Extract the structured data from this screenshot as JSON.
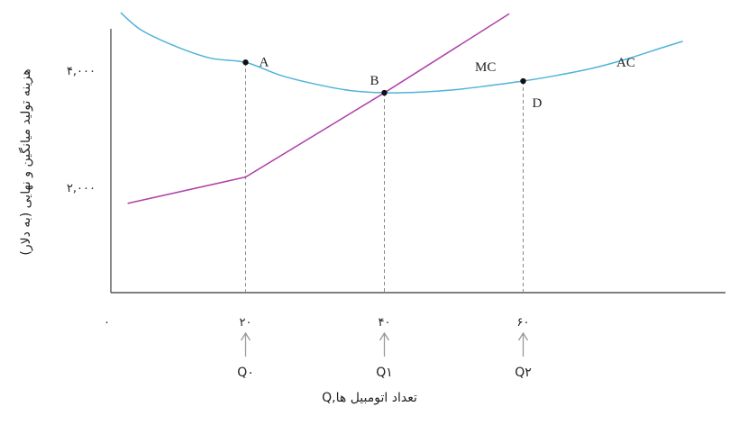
{
  "chart_data": {
    "type": "line",
    "ylabel": "هزینه تولید میانگین و نهایی (به دلار)",
    "xlabel": "Q,تعداد اتومبیل ها",
    "xlim": [
      -10,
      90
    ],
    "ylim": [
      1000,
      5000
    ],
    "x_ticks": [
      {
        "value": 0,
        "label": "۰"
      },
      {
        "value": 20,
        "label": "۲۰"
      },
      {
        "value": 40,
        "label": "۴۰"
      },
      {
        "value": 60,
        "label": "۶۰"
      }
    ],
    "y_ticks": [
      {
        "value": 2000,
        "label": "۲,۰۰۰"
      },
      {
        "value": 4000,
        "label": "۴,۰۰۰"
      }
    ],
    "q_labels": [
      {
        "x": 20,
        "label": "Q۰"
      },
      {
        "x": 40,
        "label": "Q۱"
      },
      {
        "x": 60,
        "label": "Q۲"
      }
    ],
    "series": [
      {
        "name": "AC",
        "color": "#4fb3d9",
        "x": [
          2,
          5,
          10,
          15,
          20,
          25,
          30,
          35,
          40,
          45,
          50,
          55,
          60,
          65,
          70,
          75,
          80,
          83
        ],
        "y": [
          5000,
          4700,
          4420,
          4220,
          4150,
          3930,
          3780,
          3670,
          3630,
          3640,
          3680,
          3750,
          3830,
          3930,
          4050,
          4210,
          4400,
          4510
        ]
      },
      {
        "name": "MC",
        "color": "#b040a8",
        "x": [
          3,
          20,
          40,
          58
        ],
        "y": [
          1740,
          2190,
          3630,
          4980
        ]
      }
    ],
    "points": [
      {
        "label": "A",
        "x": 20,
        "y": 4150
      },
      {
        "label": "B",
        "x": 40,
        "y": 3630
      },
      {
        "label": "D",
        "x": 60,
        "y": 3830
      }
    ]
  }
}
